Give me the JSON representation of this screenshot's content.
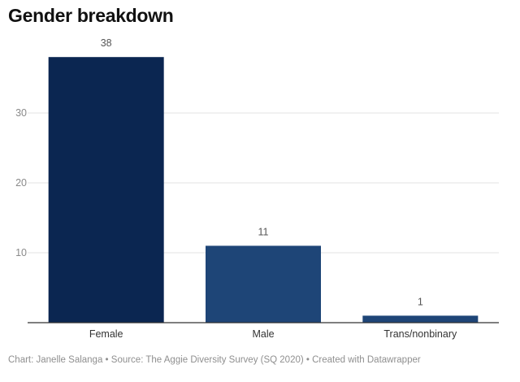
{
  "title": "Gender breakdown",
  "footer": "Chart: Janelle Salanga • Source: The Aggie Diversity Survey (SQ 2020) • Created with Datawrapper",
  "chart_data": {
    "type": "bar",
    "title": "Gender breakdown",
    "categories": [
      "Female",
      "Male",
      "Trans/nonbinary"
    ],
    "values": [
      38,
      11,
      1
    ],
    "colors": [
      "#0b2651",
      "#1e4577",
      "#1e4577"
    ],
    "yticks": [
      10,
      20,
      30
    ],
    "ylim": [
      0,
      40
    ],
    "grid": true,
    "data_labels": true,
    "xlabel": "",
    "ylabel": ""
  }
}
